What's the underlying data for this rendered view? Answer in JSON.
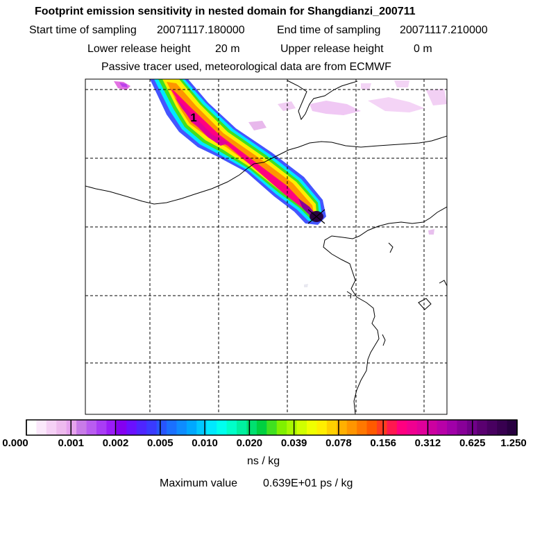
{
  "title": "Footprint emission sensitivity in nested domain for Shangdianzi_200711",
  "start_label": "Start time of sampling",
  "start_value": "20071117.180000",
  "end_label": "End time of sampling",
  "end_value": "20071117.210000",
  "lower_label": "Lower release height",
  "lower_value": "20 m",
  "upper_label": "Upper release height",
  "upper_value": "0 m",
  "tracer_note": "Passive tracer used, meteorological data are from ECMWF",
  "plume_label": "1",
  "colorbar": {
    "ticks": [
      "0.000",
      "0.001",
      "0.002",
      "0.005",
      "0.010",
      "0.020",
      "0.039",
      "0.078",
      "0.156",
      "0.312",
      "0.625",
      "1.250"
    ],
    "unit": "ns / kg",
    "colors": [
      "#ffffff",
      "#fbe8fb",
      "#f5d0f5",
      "#eebaee",
      "#e6a3ee",
      "#c87be8",
      "#b95cf0",
      "#a93cf5",
      "#9a1cf8",
      "#8400f0",
      "#6a10ff",
      "#4e25ff",
      "#3a3aff",
      "#2755ff",
      "#1a70ff",
      "#0e8cff",
      "#00a8ff",
      "#00c8ff",
      "#00e8ff",
      "#00ffee",
      "#00ffc8",
      "#00f0a0",
      "#00e070",
      "#00d040",
      "#40e020",
      "#80f000",
      "#a8f800",
      "#d0ff00",
      "#f0ff00",
      "#ffee00",
      "#ffd000",
      "#ffb000",
      "#ff9500",
      "#ff7800",
      "#ff5a00",
      "#ff3c20",
      "#ff1850",
      "#ff0080",
      "#f00090",
      "#e0009a",
      "#cc00a0",
      "#b800a8",
      "#a000a8",
      "#880098",
      "#700088",
      "#5a0070",
      "#480060",
      "#380050",
      "#280040"
    ]
  },
  "maximum_label": "Maximum value",
  "maximum_value": "0.639E+01 ps / kg"
}
